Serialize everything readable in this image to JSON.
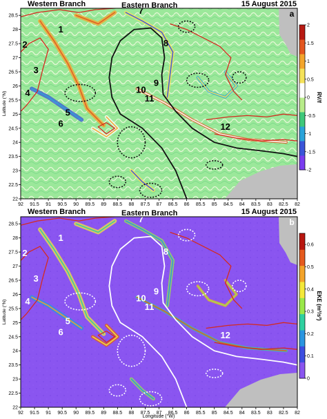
{
  "chart_data": [
    {
      "type": "heatmap",
      "panel_letter": "a",
      "header_left": "Western Branch",
      "header_mid": "Eastern Branch",
      "date": "15 August 2015",
      "ylabel": "Latitude (°N)",
      "xlabel": "",
      "xlim": [
        92,
        82
      ],
      "ylim": [
        22,
        28.75
      ],
      "x_ticks": [
        92,
        91.5,
        91,
        90.5,
        90,
        89.5,
        89,
        88.5,
        88,
        87.5,
        87,
        86.5,
        86,
        85.5,
        85,
        84.5,
        84,
        83.5,
        83,
        82.5,
        82
      ],
      "y_ticks": [
        22,
        22.5,
        23,
        23.5,
        24,
        24.5,
        25,
        25.5,
        26,
        26.5,
        27,
        27.5,
        28,
        28.5
      ],
      "colorbar": {
        "label": "RV/f",
        "ticks": [
          2,
          1.5,
          1,
          0.5,
          0,
          -0.5,
          -1,
          -1.5,
          -2
        ],
        "range": [
          -2,
          2
        ],
        "colors": [
          "#7a3cf0",
          "#3a54d8",
          "#2aa3d9",
          "#3fc87a",
          "#b8ec8a",
          "#ffffff",
          "#f5e25a",
          "#f3a52c",
          "#e3561f",
          "#b81a12"
        ]
      },
      "field_base_color": "#9be89a",
      "land_color": "#bfbfbf",
      "contour_colors": {
        "shelf": "#d42a1f",
        "loop": "#111111",
        "eddies": "#111111"
      },
      "eddy_labels": [
        {
          "id": "1",
          "lon": 90.55,
          "lat": 27.9
        },
        {
          "id": "2",
          "lon": 91.85,
          "lat": 27.35
        },
        {
          "id": "3",
          "lon": 91.45,
          "lat": 26.45
        },
        {
          "id": "4",
          "lon": 91.75,
          "lat": 25.65
        },
        {
          "id": "5",
          "lon": 90.3,
          "lat": 24.95
        },
        {
          "id": "6",
          "lon": 90.55,
          "lat": 24.55
        },
        {
          "id": "7",
          "lon": 87.65,
          "lat": 28.55
        },
        {
          "id": "8",
          "lon": 86.75,
          "lat": 27.4
        },
        {
          "id": "9",
          "lon": 87.1,
          "lat": 26.0
        },
        {
          "id": "10",
          "lon": 87.65,
          "lat": 25.75
        },
        {
          "id": "11",
          "lon": 87.35,
          "lat": 25.45
        },
        {
          "id": "12",
          "lon": 84.6,
          "lat": 24.45
        }
      ],
      "loop_current": [
        [
          86.0,
          22.0
        ],
        [
          86.4,
          23.0
        ],
        [
          86.9,
          23.8
        ],
        [
          87.6,
          24.5
        ],
        [
          88.4,
          25.0
        ],
        [
          88.7,
          25.6
        ],
        [
          88.8,
          26.3
        ],
        [
          88.7,
          27.0
        ],
        [
          88.4,
          27.6
        ],
        [
          87.9,
          28.0
        ],
        [
          87.3,
          28.05
        ],
        [
          86.9,
          27.7
        ],
        [
          86.8,
          27.0
        ],
        [
          86.9,
          26.4
        ],
        [
          86.85,
          25.7
        ],
        [
          86.4,
          25.1
        ],
        [
          85.8,
          24.5
        ],
        [
          85.0,
          24.0
        ],
        [
          84.2,
          23.8
        ],
        [
          83.3,
          23.7
        ],
        [
          82.5,
          23.6
        ],
        [
          82.0,
          23.5
        ]
      ]
    },
    {
      "type": "heatmap",
      "panel_letter": "b",
      "header_left": "Western Branch",
      "header_mid": "Eastern Branch",
      "date": "15 August 2015",
      "ylabel": "Latitude (°N)",
      "xlabel": "Longitude (°W)",
      "xlim": [
        92,
        82
      ],
      "ylim": [
        22,
        28.75
      ],
      "x_ticks": [
        92,
        91.5,
        91,
        90.5,
        90,
        89.5,
        89,
        88.5,
        88,
        87.5,
        87,
        86.5,
        86,
        85.5,
        85,
        84.5,
        84,
        83.5,
        83,
        82.5,
        82
      ],
      "y_ticks": [
        22,
        22.5,
        23,
        23.5,
        24,
        24.5,
        25,
        25.5,
        26,
        26.5,
        27,
        27.5,
        28,
        28.5
      ],
      "colorbar": {
        "label": "EKE (m²/s²)",
        "ticks": [
          0.6,
          0.5,
          0.4,
          0.3,
          0.2,
          0.1,
          0
        ],
        "range": [
          0,
          0.65
        ],
        "colors": [
          "#8a55f0",
          "#3c4ee0",
          "#2a95e0",
          "#2fd0a0",
          "#9ae84a",
          "#f4e83a",
          "#f3a32a",
          "#e55a1e",
          "#b8160f"
        ]
      },
      "field_base_color": "#8a55f0",
      "land_color": "#bfbfbf",
      "contour_colors": {
        "shelf": "#d42a1f",
        "loop": "#ffffff",
        "eddies": "#ffffff"
      },
      "eddy_labels": [
        {
          "id": "1",
          "lon": 90.55,
          "lat": 27.9
        },
        {
          "id": "2",
          "lon": 91.85,
          "lat": 27.35
        },
        {
          "id": "3",
          "lon": 91.45,
          "lat": 26.45
        },
        {
          "id": "4",
          "lon": 91.75,
          "lat": 25.65
        },
        {
          "id": "5",
          "lon": 90.3,
          "lat": 24.95
        },
        {
          "id": "6",
          "lon": 90.55,
          "lat": 24.55
        },
        {
          "id": "7",
          "lon": 87.65,
          "lat": 28.55
        },
        {
          "id": "8",
          "lon": 86.75,
          "lat": 27.4
        },
        {
          "id": "9",
          "lon": 87.1,
          "lat": 26.0
        },
        {
          "id": "10",
          "lon": 87.65,
          "lat": 25.75
        },
        {
          "id": "11",
          "lon": 87.35,
          "lat": 25.45
        },
        {
          "id": "12",
          "lon": 84.6,
          "lat": 24.45
        }
      ],
      "loop_current": [
        [
          86.0,
          22.0
        ],
        [
          86.4,
          23.0
        ],
        [
          86.9,
          23.8
        ],
        [
          87.6,
          24.5
        ],
        [
          88.4,
          25.0
        ],
        [
          88.7,
          25.6
        ],
        [
          88.8,
          26.3
        ],
        [
          88.7,
          27.0
        ],
        [
          88.4,
          27.6
        ],
        [
          87.9,
          28.0
        ],
        [
          87.3,
          28.05
        ],
        [
          86.9,
          27.7
        ],
        [
          86.8,
          27.0
        ],
        [
          86.9,
          26.4
        ],
        [
          86.85,
          25.7
        ],
        [
          86.4,
          25.1
        ],
        [
          85.8,
          24.5
        ],
        [
          85.0,
          24.0
        ],
        [
          84.2,
          23.8
        ],
        [
          83.3,
          23.7
        ],
        [
          82.5,
          23.6
        ],
        [
          82.0,
          23.5
        ]
      ]
    }
  ]
}
